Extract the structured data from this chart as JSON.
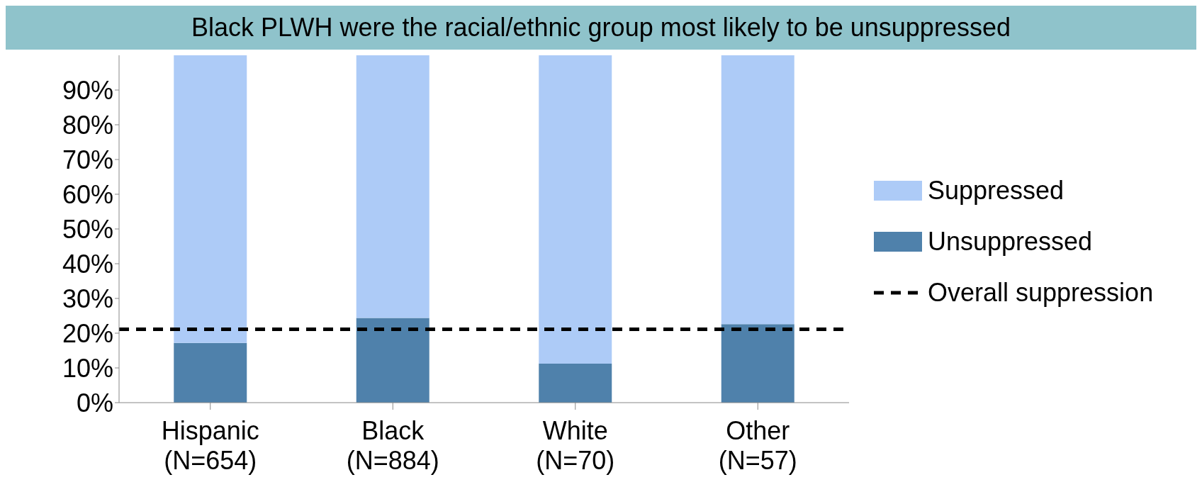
{
  "chart_data": {
    "type": "bar",
    "title": "Black PLWH were the racial/ethnic group most likely to be unsuppressed",
    "categories": [
      "Hispanic\n(N=654)",
      "Black\n(N=884)",
      "White\n(N=70)",
      "Other\n(N=57)"
    ],
    "series": [
      {
        "name": "Unsuppressed",
        "color": "#4f81ab",
        "values": [
          17.2,
          24.4,
          11.2,
          22.6
        ]
      },
      {
        "name": "Suppressed",
        "color": "#adcbf7",
        "values": [
          82.8,
          75.6,
          88.8,
          77.4
        ]
      }
    ],
    "stacked": true,
    "ylim": [
      0,
      100
    ],
    "yticks": [
      {
        "value": 0,
        "label": "0%"
      },
      {
        "value": 10,
        "label": "10%"
      },
      {
        "value": 20,
        "label": "20%"
      },
      {
        "value": 30,
        "label": "30%"
      },
      {
        "value": 40,
        "label": "40%"
      },
      {
        "value": 50,
        "label": "50%"
      },
      {
        "value": 60,
        "label": "60%"
      },
      {
        "value": 70,
        "label": "70%"
      },
      {
        "value": 80,
        "label": "80%"
      },
      {
        "value": 90,
        "label": "90%"
      }
    ],
    "ref_lines": [
      {
        "axis": "y",
        "value": 21.1,
        "label": "Overall suppression",
        "color": "#000000",
        "line_style": "dashed"
      }
    ],
    "grid": false,
    "legend": "right"
  }
}
